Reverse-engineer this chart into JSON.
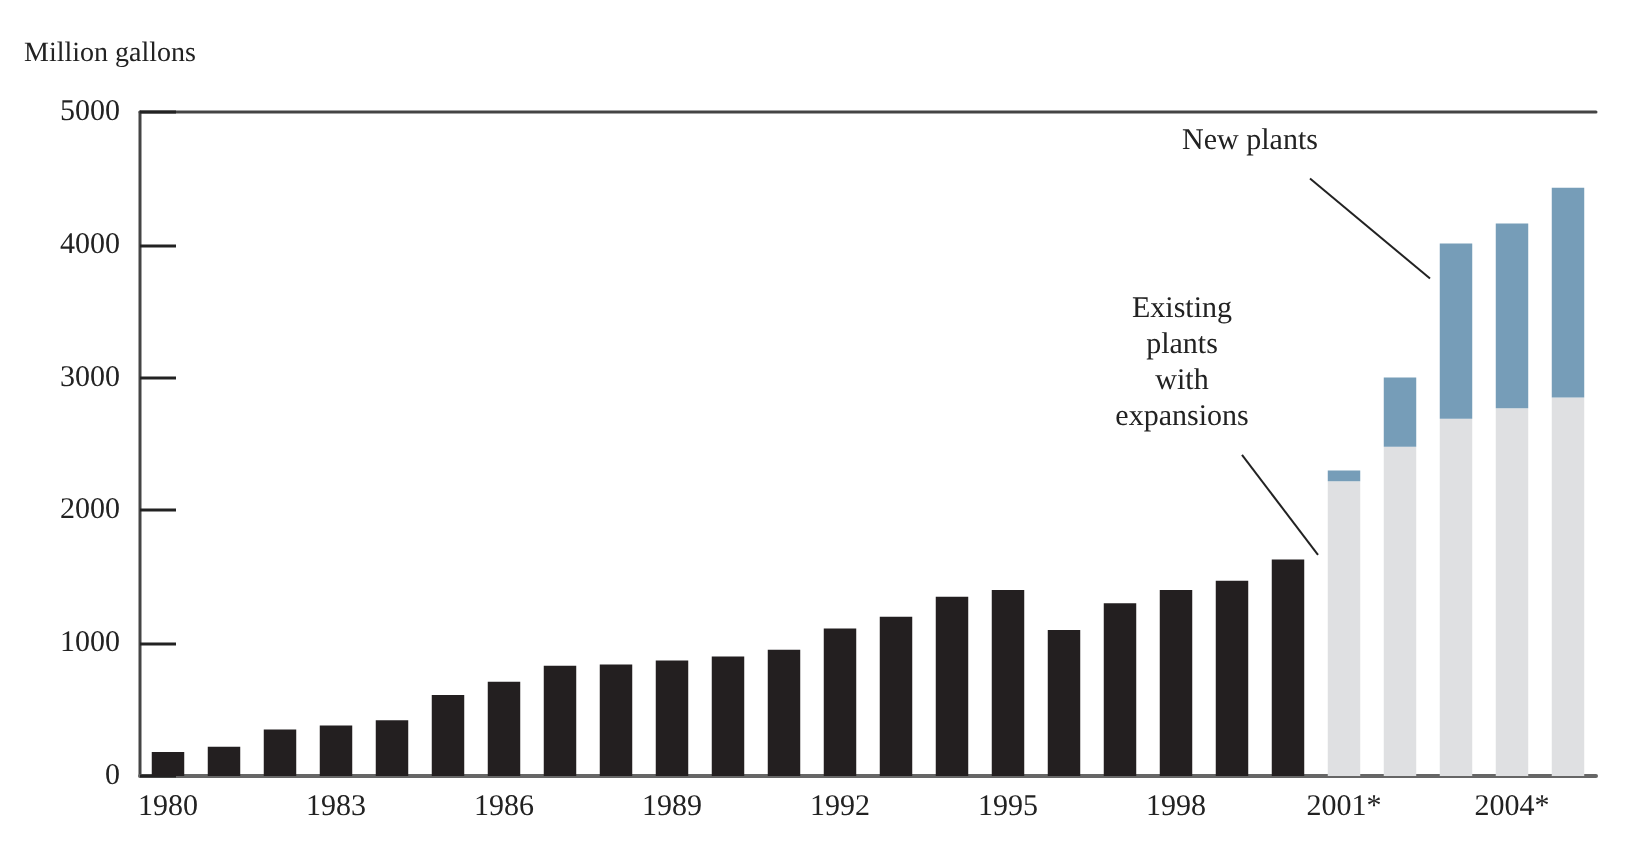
{
  "chart_data": {
    "type": "bar",
    "stacked": true,
    "ylabel": "Million gallons",
    "categories": [
      "1980",
      null,
      null,
      "1983",
      null,
      null,
      "1986",
      null,
      null,
      "1989",
      null,
      null,
      "1992",
      null,
      null,
      "1995",
      null,
      null,
      "1998",
      null,
      null,
      "2001*",
      null,
      null,
      "2004*",
      null
    ],
    "series": [
      {
        "color": "#231f20",
        "values": [
          180,
          220,
          350,
          380,
          420,
          610,
          710,
          830,
          840,
          870,
          900,
          950,
          1110,
          1200,
          1350,
          1400,
          1100,
          1300,
          1400,
          1470,
          1630,
          null,
          null,
          null,
          null,
          null
        ]
      },
      {
        "name": "Existing plants with expansions",
        "color": "#dfe0e2",
        "values": [
          null,
          null,
          null,
          null,
          null,
          null,
          null,
          null,
          null,
          null,
          null,
          null,
          null,
          null,
          null,
          null,
          null,
          null,
          null,
          null,
          null,
          2220,
          2480,
          2690,
          2770,
          2850
        ]
      },
      {
        "name": "New plants",
        "color": "#769db8",
        "values": [
          null,
          null,
          null,
          null,
          null,
          null,
          null,
          null,
          null,
          null,
          null,
          null,
          null,
          null,
          null,
          null,
          null,
          null,
          null,
          null,
          null,
          80,
          520,
          1320,
          1390,
          1580
        ]
      }
    ],
    "ylim": [
      0,
      5000
    ],
    "yticks": [
      0,
      1000,
      2000,
      3000,
      4000,
      5000
    ],
    "grid": false,
    "legend": false
  }
}
